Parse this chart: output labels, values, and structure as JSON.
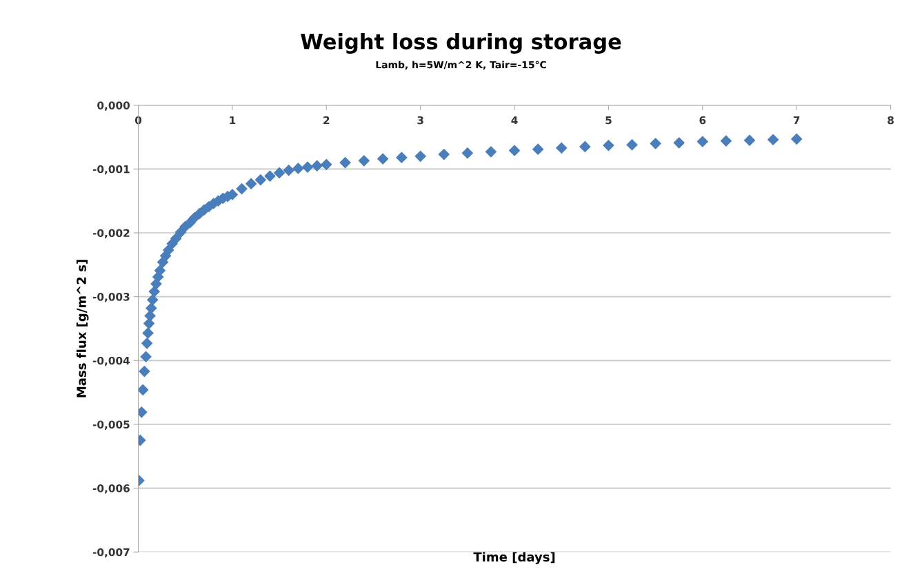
{
  "chart_data": {
    "type": "scatter",
    "title": "Weight loss during storage",
    "subtitle": "Lamb, h=5W/m^2 K, Tair=-15°C",
    "xlabel": "Time [days]",
    "ylabel": "Mass flux [g/m^2 s]",
    "x": [
      0.007,
      0.02,
      0.035,
      0.049,
      0.065,
      0.081,
      0.092,
      0.103,
      0.114,
      0.125,
      0.138,
      0.152,
      0.17,
      0.19,
      0.21,
      0.23,
      0.26,
      0.29,
      0.32,
      0.36,
      0.4,
      0.45,
      0.5,
      0.55,
      0.6,
      0.65,
      0.7,
      0.75,
      0.8,
      0.85,
      0.9,
      0.95,
      1.0,
      1.1,
      1.2,
      1.3,
      1.4,
      1.5,
      1.6,
      1.7,
      1.8,
      1.9,
      2.0,
      2.2,
      2.4,
      2.6,
      2.8,
      3.0,
      3.25,
      3.5,
      3.75,
      4.0,
      4.25,
      4.5,
      4.75,
      5.0,
      5.25,
      5.5,
      5.75,
      6.0,
      6.25,
      6.5,
      6.75,
      7.0
    ],
    "series": [
      {
        "color": "#4a7ebb",
        "values": [
          -0.00588,
          -0.00525,
          -0.00481,
          -0.00446,
          -0.00417,
          -0.00394,
          -0.00373,
          -0.00357,
          -0.00342,
          -0.0033,
          -0.00318,
          -0.00305,
          -0.00292,
          -0.0028,
          -0.00269,
          -0.00259,
          -0.00246,
          -0.00236,
          -0.00227,
          -0.00217,
          -0.00209,
          -0.00199,
          -0.0019,
          -0.00184,
          -0.00176,
          -0.0017,
          -0.00164,
          -0.00159,
          -0.00154,
          -0.0015,
          -0.00146,
          -0.00143,
          -0.0014,
          -0.00131,
          -0.00123,
          -0.00117,
          -0.00111,
          -0.00106,
          -0.00102,
          -0.00099,
          -0.00097,
          -0.00095,
          -0.00093,
          -0.0009,
          -0.00087,
          -0.00084,
          -0.00082,
          -0.0008,
          -0.00077,
          -0.00075,
          -0.00073,
          -0.00071,
          -0.00069,
          -0.00067,
          -0.00065,
          -0.00063,
          -0.00062,
          -0.0006,
          -0.00059,
          -0.00057,
          -0.00056,
          -0.00055,
          -0.00054,
          -0.00053
        ]
      }
    ],
    "xlim": [
      0,
      8
    ],
    "xticks": [
      0,
      1,
      2,
      3,
      4,
      5,
      6,
      7,
      8
    ],
    "ylim": [
      -0.007,
      0
    ],
    "yticks": [
      {
        "value": 0,
        "label": "0,000"
      },
      {
        "value": -0.001,
        "label": "-0,001"
      },
      {
        "value": -0.002,
        "label": "-0,002"
      },
      {
        "value": -0.003,
        "label": "-0,003"
      },
      {
        "value": -0.004,
        "label": "-0,004"
      },
      {
        "value": -0.005,
        "label": "-0,005"
      },
      {
        "value": -0.006,
        "label": "-0,006"
      },
      {
        "value": -0.007,
        "label": "-0,007"
      }
    ],
    "grid": "y",
    "marker": "diamond"
  }
}
